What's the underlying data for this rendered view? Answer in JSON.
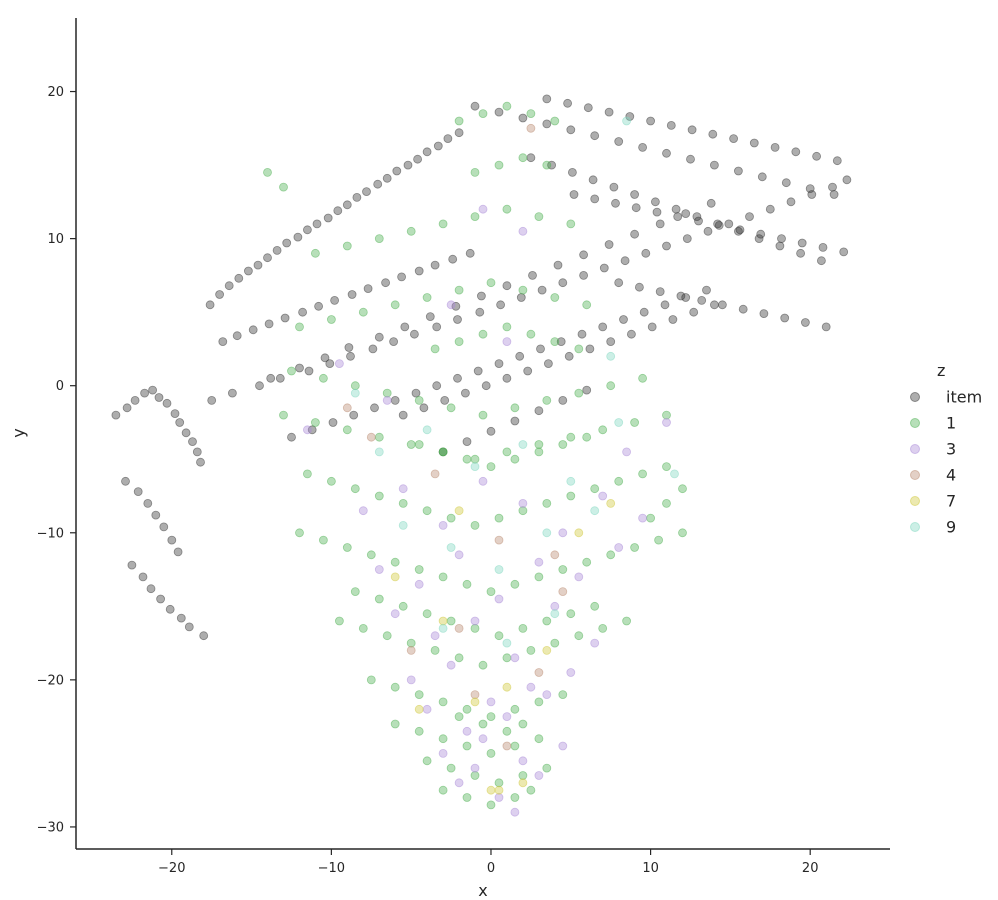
{
  "chart_data": {
    "type": "scatter",
    "xlabel": "x",
    "ylabel": "y",
    "xlim": [
      -26,
      25
    ],
    "ylim": [
      -31.5,
      25
    ],
    "x_ticks": [
      -20,
      -10,
      0,
      10,
      20
    ],
    "y_ticks": [
      -30,
      -20,
      -10,
      0,
      10,
      20
    ],
    "x_tick_labels": [
      "−20",
      "−10",
      "0",
      "10",
      "20"
    ],
    "y_tick_labels": [
      "−30",
      "−20",
      "−10",
      "0",
      "10",
      "20"
    ],
    "grid": false,
    "legend": {
      "title": "z",
      "placement": "right",
      "entries": [
        {
          "label": "item",
          "color": "#333333"
        },
        {
          "label": "1",
          "color": "#4caf50"
        },
        {
          "label": "3",
          "color": "#a98ad8"
        },
        {
          "label": "4",
          "color": "#b98a70"
        },
        {
          "label": "7",
          "color": "#d0c83a"
        },
        {
          "label": "9",
          "color": "#7fd8c0"
        }
      ]
    },
    "marker_opacity": 0.4,
    "series": [
      {
        "name": "item",
        "color": "#333333",
        "x": [
          -23.5,
          -22.8,
          -22.3,
          -21.7,
          -21.2,
          -20.8,
          -20.3,
          -19.8,
          -19.5,
          -19.1,
          -18.7,
          -18.4,
          -18.2,
          -22.9,
          -22.1,
          -21.5,
          -21.0,
          -20.5,
          -20.0,
          -19.6,
          -22.5,
          -21.8,
          -21.3,
          -20.7,
          -20.1,
          -19.4,
          -18.9,
          -18.0,
          -17.6,
          -17.0,
          -16.4,
          -15.8,
          -15.2,
          -14.6,
          -14.0,
          -13.4,
          -12.8,
          -12.1,
          -11.5,
          -10.9,
          -10.2,
          -9.6,
          -9.0,
          -8.4,
          -7.8,
          -7.1,
          -6.5,
          -5.9,
          -5.2,
          -4.6,
          -4.0,
          -3.3,
          -2.7,
          -2.0,
          -16.8,
          -15.9,
          -14.9,
          -13.9,
          -12.9,
          -11.8,
          -10.8,
          -9.8,
          -8.7,
          -7.7,
          -6.6,
          -5.6,
          -4.5,
          -3.5,
          -2.4,
          -1.3,
          -17.5,
          -16.2,
          -14.5,
          -13.2,
          -11.4,
          -10.1,
          -8.8,
          -7.4,
          -6.1,
          -4.8,
          -3.4,
          -2.1,
          -0.7,
          0.6,
          1.9,
          3.2,
          4.5,
          5.8,
          7.1,
          8.4,
          9.7,
          11.0,
          12.3,
          13.6,
          14.9,
          16.2,
          17.5,
          18.8,
          20.1,
          21.4,
          22.3,
          3.5,
          4.8,
          6.1,
          7.4,
          8.7,
          10.0,
          11.3,
          12.6,
          13.9,
          15.2,
          16.5,
          17.8,
          19.1,
          20.4,
          21.7,
          5.2,
          6.5,
          7.8,
          9.1,
          10.4,
          11.7,
          13.0,
          14.3,
          15.6,
          16.9,
          18.2,
          19.5,
          20.8,
          22.1,
          8.0,
          9.3,
          10.6,
          11.9,
          13.2,
          14.5,
          15.8,
          17.1,
          18.4,
          19.7,
          21.0,
          2.5,
          3.8,
          5.1,
          6.4,
          7.7,
          9.0,
          10.3,
          11.6,
          12.9,
          14.2,
          15.5,
          16.8,
          18.1,
          19.4,
          20.7,
          -5.5,
          -4.2,
          -2.9,
          -1.6,
          -0.3,
          1.0,
          2.3,
          3.6,
          4.9,
          6.2,
          7.5,
          8.8,
          10.1,
          11.4,
          12.7,
          14.0,
          -12.5,
          -11.2,
          -9.9,
          -8.6,
          -7.3,
          -6.0,
          -4.7,
          -3.4,
          -2.1,
          -0.8,
          0.5,
          1.8,
          3.1,
          4.4,
          5.7,
          7.0,
          8.3,
          9.6,
          10.9,
          12.2,
          13.5,
          -13.8,
          -12.0,
          -10.4,
          -8.9,
          -7.0,
          -5.4,
          -3.8,
          -2.2,
          -0.6,
          1.0,
          2.6,
          4.2,
          5.8,
          7.4,
          9.0,
          10.6,
          12.2,
          13.8,
          -3.0,
          -1.5,
          0.0,
          1.5,
          3.0,
          4.5,
          6.0,
          -1.0,
          0.5,
          2.0,
          3.5,
          5.0,
          6.5,
          8.0,
          9.5,
          11.0,
          12.5,
          14.0,
          15.5,
          17.0,
          18.5,
          20.0,
          21.5
        ],
        "y": [
          -2.0,
          -1.5,
          -1.0,
          -0.5,
          -0.3,
          -0.8,
          -1.2,
          -1.9,
          -2.5,
          -3.2,
          -3.8,
          -4.5,
          -5.2,
          -6.5,
          -7.2,
          -8.0,
          -8.8,
          -9.6,
          -10.5,
          -11.3,
          -12.2,
          -13.0,
          -13.8,
          -14.5,
          -15.2,
          -15.8,
          -16.4,
          -17.0,
          5.5,
          6.2,
          6.8,
          7.3,
          7.8,
          8.2,
          8.7,
          9.2,
          9.7,
          10.1,
          10.6,
          11.0,
          11.4,
          11.9,
          12.3,
          12.8,
          13.2,
          13.7,
          14.1,
          14.6,
          15.0,
          15.4,
          15.9,
          16.3,
          16.8,
          17.2,
          3.0,
          3.4,
          3.8,
          4.2,
          4.6,
          5.0,
          5.4,
          5.8,
          6.2,
          6.6,
          7.0,
          7.4,
          7.8,
          8.2,
          8.6,
          9.0,
          -1.0,
          -0.5,
          0.0,
          0.5,
          1.0,
          1.5,
          2.0,
          2.5,
          3.0,
          3.5,
          4.0,
          4.5,
          5.0,
          5.5,
          6.0,
          6.5,
          7.0,
          7.5,
          8.0,
          8.5,
          9.0,
          9.5,
          10.0,
          10.5,
          11.0,
          11.5,
          12.0,
          12.5,
          13.0,
          13.5,
          14.0,
          19.5,
          19.2,
          18.9,
          18.6,
          18.3,
          18.0,
          17.7,
          17.4,
          17.1,
          16.8,
          16.5,
          16.2,
          15.9,
          15.6,
          15.3,
          13.0,
          12.7,
          12.4,
          12.1,
          11.8,
          11.5,
          11.2,
          10.9,
          10.6,
          10.3,
          10.0,
          9.7,
          9.4,
          9.1,
          7.0,
          6.7,
          6.4,
          6.1,
          5.8,
          5.5,
          5.2,
          4.9,
          4.6,
          4.3,
          4.0,
          15.5,
          15.0,
          14.5,
          14.0,
          13.5,
          13.0,
          12.5,
          12.0,
          11.5,
          11.0,
          10.5,
          10.0,
          9.5,
          9.0,
          8.5,
          -2.0,
          -1.5,
          -1.0,
          -0.5,
          0.0,
          0.5,
          1.0,
          1.5,
          2.0,
          2.5,
          3.0,
          3.5,
          4.0,
          4.5,
          5.0,
          5.5,
          -3.5,
          -3.0,
          -2.5,
          -2.0,
          -1.5,
          -1.0,
          -0.5,
          0.0,
          0.5,
          1.0,
          1.5,
          2.0,
          2.5,
          3.0,
          3.5,
          4.0,
          4.5,
          5.0,
          5.5,
          6.0,
          6.5,
          0.5,
          1.2,
          1.9,
          2.6,
          3.3,
          4.0,
          4.7,
          5.4,
          6.1,
          6.8,
          7.5,
          8.2,
          8.9,
          9.6,
          10.3,
          11.0,
          11.7,
          12.4,
          -4.5,
          -3.8,
          -3.1,
          -2.4,
          -1.7,
          -1.0,
          -0.3,
          19.0,
          18.6,
          18.2,
          17.8,
          17.4,
          17.0,
          16.6,
          16.2,
          15.8,
          15.4,
          15.0,
          14.6,
          14.2,
          13.8,
          13.4,
          13.0
        ]
      },
      {
        "name": "1",
        "color": "#4caf50",
        "x": [
          -12.0,
          -10.5,
          -9.0,
          -7.5,
          -6.0,
          -4.5,
          -3.0,
          -1.5,
          0.0,
          1.5,
          3.0,
          4.5,
          6.0,
          7.5,
          9.0,
          10.5,
          12.0,
          -11.5,
          -10.0,
          -8.5,
          -7.0,
          -5.5,
          -4.0,
          -2.5,
          -1.0,
          0.5,
          2.0,
          3.5,
          5.0,
          6.5,
          8.0,
          9.5,
          11.0,
          -13.0,
          -11.0,
          -9.0,
          -7.0,
          -5.0,
          -3.0,
          -1.0,
          1.0,
          3.0,
          5.0,
          7.0,
          9.0,
          11.0,
          -12.5,
          -10.5,
          -8.5,
          -6.5,
          -4.5,
          -2.5,
          -0.5,
          1.5,
          3.5,
          5.5,
          7.5,
          9.5,
          -9.5,
          -8.0,
          -6.5,
          -5.0,
          -3.5,
          -2.0,
          -0.5,
          1.0,
          2.5,
          4.0,
          5.5,
          7.0,
          8.5,
          -8.5,
          -7.0,
          -5.5,
          -4.0,
          -2.5,
          -1.0,
          0.5,
          2.0,
          3.5,
          5.0,
          6.5,
          -7.5,
          -6.0,
          -4.5,
          -3.0,
          -1.5,
          0.0,
          1.5,
          3.0,
          4.5,
          -6.0,
          -4.5,
          -3.0,
          -1.5,
          0.0,
          1.5,
          3.0,
          -4.0,
          -2.5,
          -1.0,
          0.5,
          2.0,
          3.5,
          -3.0,
          -1.5,
          0.0,
          1.5,
          2.5,
          -2.0,
          -0.5,
          1.0,
          2.0,
          -12.0,
          -10.0,
          -8.0,
          -6.0,
          -4.0,
          -2.0,
          0.0,
          2.0,
          4.0,
          6.0,
          -11.0,
          -9.0,
          -7.0,
          -5.0,
          -3.0,
          -1.0,
          1.0,
          3.0,
          5.0,
          -1.0,
          0.5,
          2.0,
          3.5,
          -2.0,
          -0.5,
          1.0,
          2.5,
          4.0,
          -3.5,
          -2.0,
          -0.5,
          1.0,
          2.5,
          4.0,
          5.5,
          -4.5,
          -3.0,
          -1.5,
          0.0,
          1.5,
          3.0,
          4.5,
          6.0,
          -14.0,
          -13.0,
          10.0,
          11.0,
          12.0
        ],
        "y": [
          -10.0,
          -10.5,
          -11.0,
          -11.5,
          -12.0,
          -12.5,
          -13.0,
          -13.5,
          -14.0,
          -13.5,
          -13.0,
          -12.5,
          -12.0,
          -11.5,
          -11.0,
          -10.5,
          -10.0,
          -6.0,
          -6.5,
          -7.0,
          -7.5,
          -8.0,
          -8.5,
          -9.0,
          -9.5,
          -9.0,
          -8.5,
          -8.0,
          -7.5,
          -7.0,
          -6.5,
          -6.0,
          -5.5,
          -2.0,
          -2.5,
          -3.0,
          -3.5,
          -4.0,
          -4.5,
          -5.0,
          -4.5,
          -4.0,
          -3.5,
          -3.0,
          -2.5,
          -2.0,
          1.0,
          0.5,
          0.0,
          -0.5,
          -1.0,
          -1.5,
          -2.0,
          -1.5,
          -1.0,
          -0.5,
          0.0,
          0.5,
          -16.0,
          -16.5,
          -17.0,
          -17.5,
          -18.0,
          -18.5,
          -19.0,
          -18.5,
          -18.0,
          -17.5,
          -17.0,
          -16.5,
          -16.0,
          -14.0,
          -14.5,
          -15.0,
          -15.5,
          -16.0,
          -16.5,
          -17.0,
          -16.5,
          -16.0,
          -15.5,
          -15.0,
          -20.0,
          -20.5,
          -21.0,
          -21.5,
          -22.0,
          -22.5,
          -22.0,
          -21.5,
          -21.0,
          -23.0,
          -23.5,
          -24.0,
          -24.5,
          -25.0,
          -24.5,
          -24.0,
          -25.5,
          -26.0,
          -26.5,
          -27.0,
          -26.5,
          -26.0,
          -27.5,
          -28.0,
          -28.5,
          -28.0,
          -27.5,
          -22.5,
          -23.0,
          -23.5,
          -23.0,
          4.0,
          4.5,
          5.0,
          5.5,
          6.0,
          6.5,
          7.0,
          6.5,
          6.0,
          5.5,
          9.0,
          9.5,
          10.0,
          10.5,
          11.0,
          11.5,
          12.0,
          11.5,
          11.0,
          14.5,
          15.0,
          15.5,
          15.0,
          18.0,
          18.5,
          19.0,
          18.5,
          18.0,
          2.5,
          3.0,
          3.5,
          4.0,
          3.5,
          3.0,
          2.5,
          -4.0,
          -4.5,
          -5.0,
          -5.5,
          -5.0,
          -4.5,
          -4.0,
          -3.5,
          14.5,
          13.5,
          -9.0,
          -8.0,
          -7.0
        ]
      },
      {
        "name": "3",
        "color": "#a98ad8",
        "x": [
          -8.0,
          -5.5,
          -3.0,
          -0.5,
          2.0,
          4.5,
          7.0,
          9.5,
          -7.0,
          -4.5,
          -2.0,
          0.5,
          3.0,
          5.5,
          8.0,
          -6.0,
          -3.5,
          -1.0,
          1.5,
          4.0,
          6.5,
          -5.0,
          -2.5,
          0.0,
          2.5,
          5.0,
          -4.0,
          -1.5,
          1.0,
          3.5,
          -3.0,
          -0.5,
          2.0,
          4.5,
          -2.0,
          0.5,
          3.0,
          1.5,
          -1.0,
          -11.5,
          -9.5,
          -6.5,
          8.5,
          11.0,
          -0.5,
          2.0,
          -2.5,
          1.0
        ],
        "y": [
          -8.5,
          -7.0,
          -9.5,
          -6.5,
          -8.0,
          -10.0,
          -7.5,
          -9.0,
          -12.5,
          -13.5,
          -11.5,
          -14.5,
          -12.0,
          -13.0,
          -11.0,
          -15.5,
          -17.0,
          -16.0,
          -18.5,
          -15.0,
          -17.5,
          -20.0,
          -19.0,
          -21.5,
          -20.5,
          -19.5,
          -22.0,
          -23.5,
          -22.5,
          -21.0,
          -25.0,
          -24.0,
          -25.5,
          -24.5,
          -27.0,
          -28.0,
          -26.5,
          -29.0,
          -26.0,
          -3.0,
          1.5,
          -1.0,
          -4.5,
          -2.5,
          12.0,
          10.5,
          5.5,
          3.0
        ]
      },
      {
        "name": "4",
        "color": "#b98a70",
        "x": [
          -7.5,
          -3.5,
          0.5,
          4.5,
          -5.0,
          -1.0,
          3.0,
          1.0,
          -2.0,
          2.5,
          4.0,
          -9.0
        ],
        "y": [
          -3.5,
          -6.0,
          -10.5,
          -14.0,
          -18.0,
          -21.0,
          -19.5,
          -24.5,
          -16.5,
          17.5,
          -11.5,
          -1.5
        ]
      },
      {
        "name": "7",
        "color": "#d0c83a",
        "x": [
          -6.0,
          -2.0,
          1.0,
          3.5,
          -1.0,
          0.5,
          2.0,
          -3.0,
          5.5,
          7.5,
          -4.5,
          0.0
        ],
        "y": [
          -13.0,
          -8.5,
          -20.5,
          -18.0,
          -21.5,
          -27.5,
          -27.0,
          -16.0,
          -10.0,
          -8.0,
          -22.0,
          -27.5
        ]
      },
      {
        "name": "9",
        "color": "#7fd8c0",
        "x": [
          -7.0,
          -4.0,
          -1.0,
          2.0,
          5.0,
          8.0,
          -5.5,
          -2.5,
          0.5,
          3.5,
          6.5,
          -3.0,
          1.0,
          4.0,
          11.5,
          8.5,
          -8.5,
          7.5
        ],
        "y": [
          -4.5,
          -3.0,
          -5.5,
          -4.0,
          -6.5,
          -2.5,
          -9.5,
          -11.0,
          -12.5,
          -10.0,
          -8.5,
          -16.5,
          -17.5,
          -15.5,
          -6.0,
          18.0,
          -0.5,
          2.0
        ]
      }
    ]
  }
}
